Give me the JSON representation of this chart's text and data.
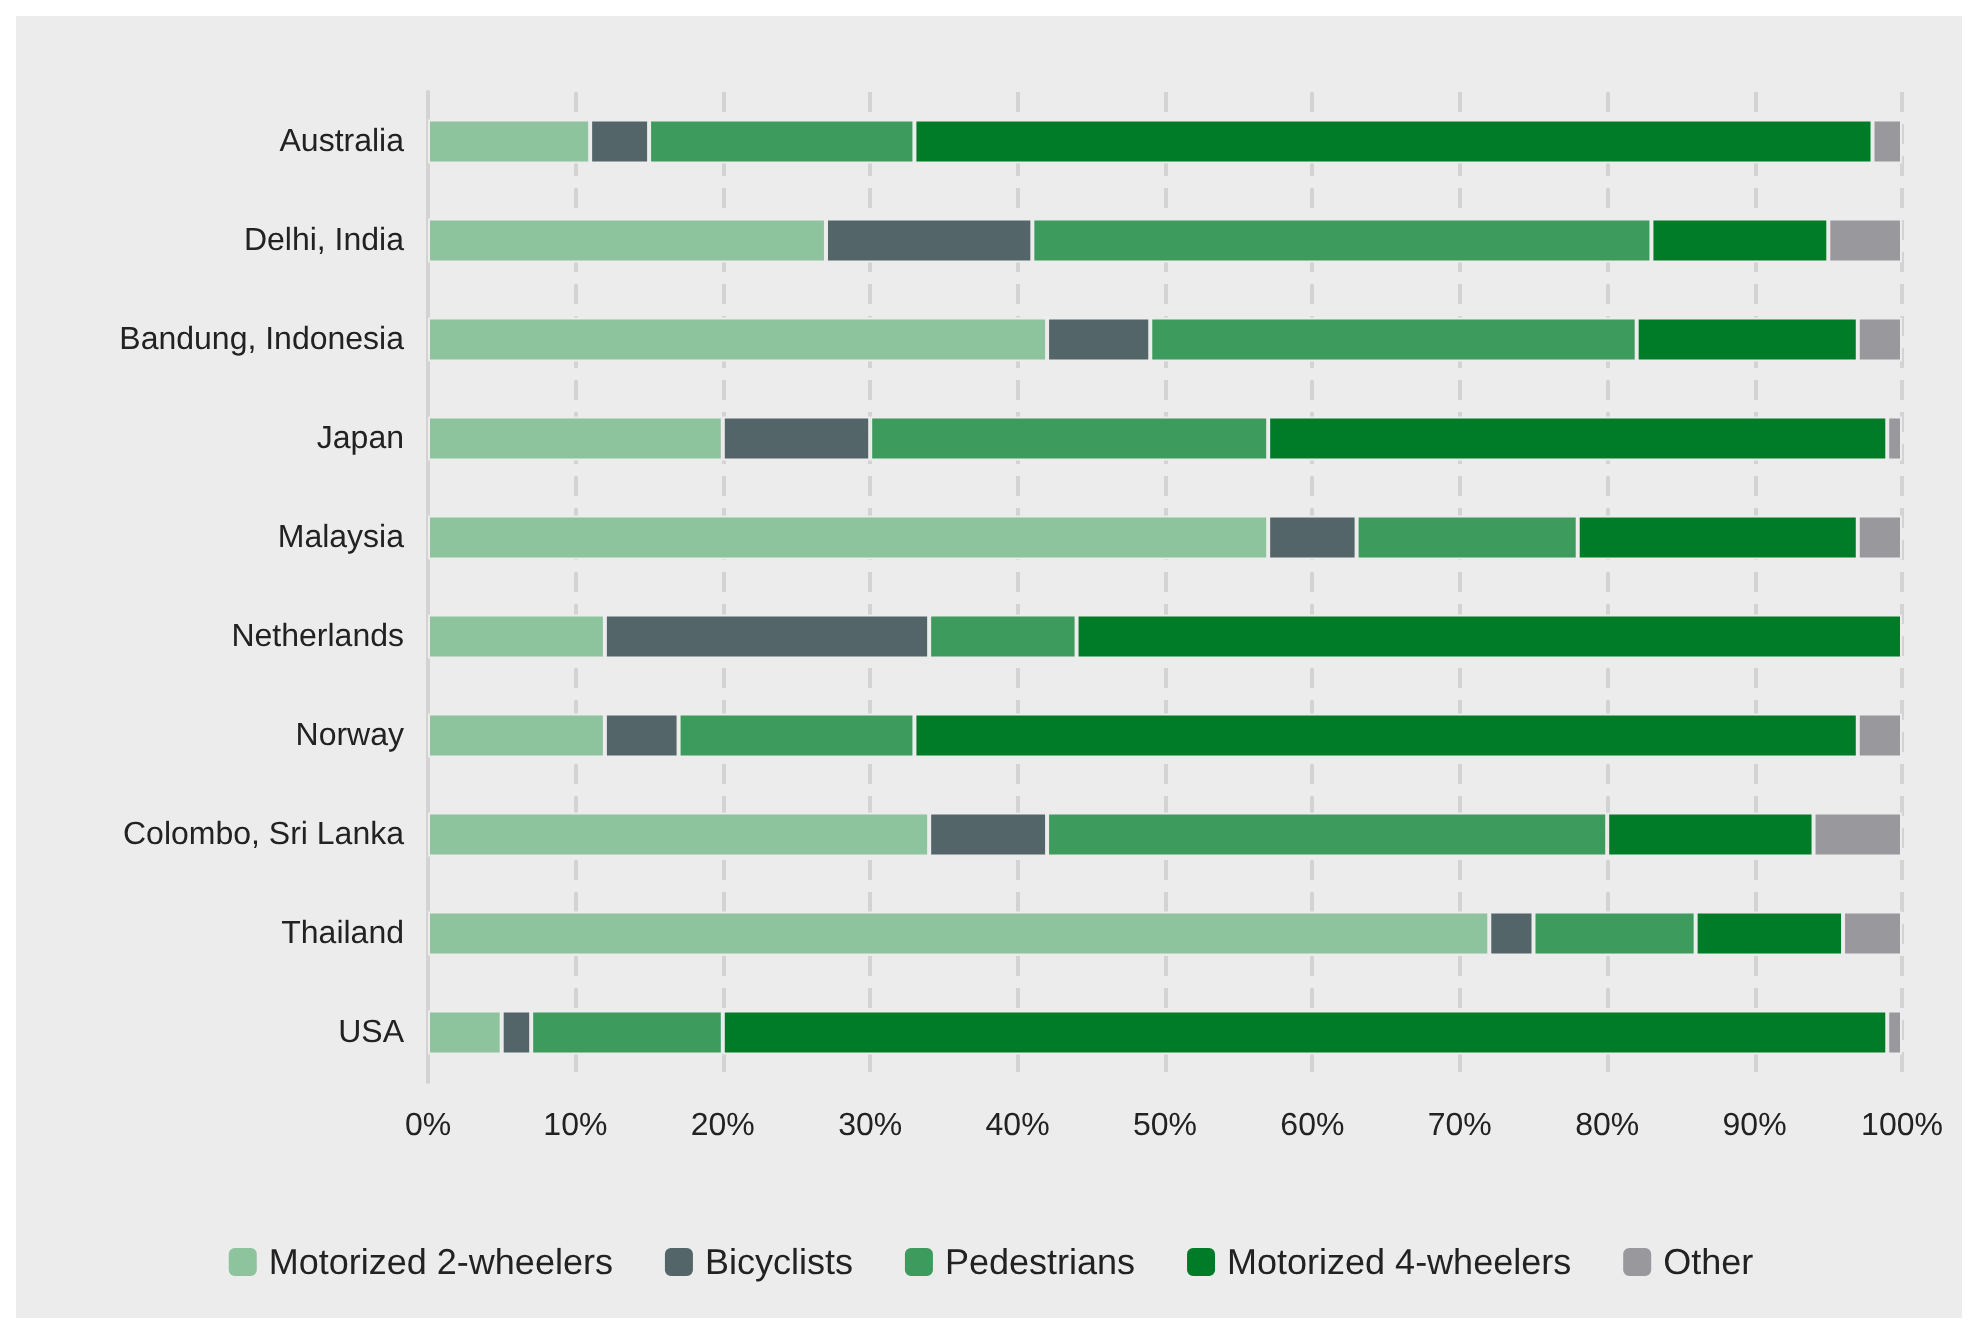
{
  "chart_data": {
    "type": "bar",
    "orientation": "horizontal",
    "stacked": true,
    "categories": [
      "Australia",
      "Delhi, India",
      "Bandung, Indonesia",
      "Japan",
      "Malaysia",
      "Netherlands",
      "Norway",
      "Colombo, Sri Lanka",
      "Thailand",
      "USA"
    ],
    "series": [
      {
        "name": "Motorized 2-wheelers",
        "color": "#8dc49d",
        "values": [
          11,
          27,
          42,
          20,
          57,
          12,
          12,
          34,
          72,
          5
        ]
      },
      {
        "name": "Bicyclists",
        "color": "#536569",
        "values": [
          4,
          14,
          7,
          10,
          6,
          22,
          5,
          8,
          3,
          2
        ]
      },
      {
        "name": "Pedestrians",
        "color": "#3d9b5d",
        "values": [
          18,
          42,
          33,
          27,
          15,
          10,
          16,
          38,
          11,
          13
        ]
      },
      {
        "name": "Motorized 4-wheelers",
        "color": "#007c28",
        "values": [
          65,
          12,
          15,
          42,
          19,
          56,
          64,
          14,
          10,
          79
        ]
      },
      {
        "name": "Other",
        "color": "#99989d",
        "values": [
          2,
          5,
          3,
          1,
          3,
          null,
          3,
          6,
          4,
          1
        ]
      }
    ],
    "xlim": [
      0,
      100
    ],
    "xticks": [
      {
        "value": 0,
        "label": "0%"
      },
      {
        "value": 10,
        "label": "10%"
      },
      {
        "value": 20,
        "label": "20%"
      },
      {
        "value": 30,
        "label": "30%"
      },
      {
        "value": 40,
        "label": "40%"
      },
      {
        "value": 50,
        "label": "50%"
      },
      {
        "value": 60,
        "label": "60%"
      },
      {
        "value": 70,
        "label": "70%"
      },
      {
        "value": 80,
        "label": "80%"
      },
      {
        "value": 90,
        "label": "90%"
      },
      {
        "value": 100,
        "label": "100%"
      }
    ],
    "grid": "x",
    "legend": "bottom"
  }
}
